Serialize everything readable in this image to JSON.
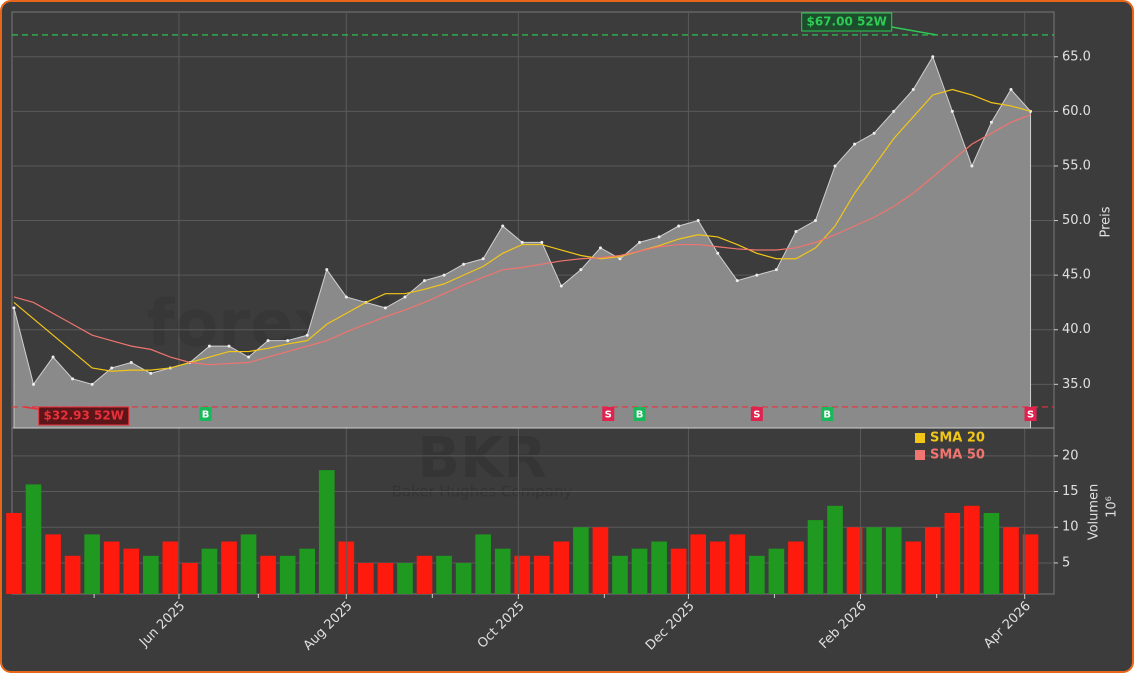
{
  "chart_data": [
    {
      "type": "area",
      "values": [
        42,
        35,
        37.5,
        35.5,
        35,
        36.5,
        37,
        36,
        36.5,
        37,
        38.5,
        38.5,
        37.5,
        39,
        39,
        39.5,
        45.5,
        43,
        42.5,
        42,
        43,
        44.5,
        45,
        46,
        46.5,
        49.5,
        48,
        48,
        44,
        45.5,
        47.5,
        46.5,
        48,
        48.5,
        49.5,
        50,
        47,
        44.5,
        45,
        45.5,
        49,
        50,
        55,
        57,
        58,
        60,
        62,
        65,
        60,
        55,
        59,
        62,
        60
      ],
      "color": "#8a8a8a",
      "series": [
        {
          "name": "SMA 20",
          "color": "#f2c618",
          "values": [
            42.5,
            41,
            39.5,
            38,
            36.5,
            36.2,
            36.3,
            36.3,
            36.5,
            37,
            37.5,
            38,
            38,
            38.3,
            38.7,
            39,
            40.5,
            41.5,
            42.5,
            43.3,
            43.3,
            43.7,
            44.2,
            45,
            45.8,
            47,
            47.8,
            47.8,
            47.3,
            46.8,
            46.5,
            46.7,
            47.2,
            47.7,
            48.3,
            48.7,
            48.5,
            47.8,
            47,
            46.5,
            46.5,
            47.5,
            49.5,
            52.5,
            55,
            57.5,
            59.5,
            61.5,
            62,
            61.5,
            60.8,
            60.5,
            60
          ]
        },
        {
          "name": "SMA 50",
          "color": "#f07470",
          "values": [
            43,
            42.5,
            41.5,
            40.5,
            39.5,
            39,
            38.5,
            38.2,
            37.5,
            37,
            36.8,
            36.9,
            37,
            37.5,
            38,
            38.5,
            39,
            39.8,
            40.5,
            41.2,
            41.8,
            42.5,
            43.3,
            44.1,
            44.8,
            45.5,
            45.7,
            46,
            46.3,
            46.5,
            46.6,
            46.8,
            47.2,
            47.6,
            47.8,
            47.8,
            47.6,
            47.4,
            47.3,
            47.3,
            47.5,
            48,
            48.7,
            49.5,
            50.3,
            51.3,
            52.5,
            54,
            55.5,
            57,
            58,
            59,
            59.7
          ]
        }
      ],
      "legend": "upper right",
      "xlim": [
        -0.1,
        53.2
      ],
      "ylim": [
        31,
        69.1
      ],
      "yticks": [
        {
          "value": 35,
          "label": "35.0"
        },
        {
          "value": 40,
          "label": "40.0"
        },
        {
          "value": 45,
          "label": "45.0"
        },
        {
          "value": 50,
          "label": "50.0"
        },
        {
          "value": 55,
          "label": "55.0"
        },
        {
          "value": 60,
          "label": "60.0"
        },
        {
          "value": 65,
          "label": "65.0"
        }
      ],
      "ylabel": "Preis",
      "grid": true,
      "high": {
        "value": 67,
        "label": "$67.00 52W",
        "x": 47.2,
        "color": "#2ecc55"
      },
      "low": {
        "value": 32.93,
        "label": "$32.93 52W",
        "x": 0.5,
        "color": "#e8313a"
      },
      "signals": [
        {
          "x": 9.8,
          "label": "B",
          "color": "#19b85a"
        },
        {
          "x": 30.4,
          "label": "S",
          "color": "#e0224f"
        },
        {
          "x": 32,
          "label": "B",
          "color": "#19b85a"
        },
        {
          "x": 38,
          "label": "S",
          "color": "#e0224f"
        },
        {
          "x": 41.6,
          "label": "B",
          "color": "#19b85a"
        },
        {
          "x": 52,
          "label": "S",
          "color": "#e0224f"
        }
      ],
      "watermark": "forexsignale.trade"
    },
    {
      "type": "bar",
      "values": [
        12,
        16,
        9,
        6,
        9,
        8,
        7,
        6,
        8,
        5,
        7,
        8,
        9,
        6,
        6,
        7,
        18,
        8,
        5,
        5,
        5,
        6,
        6,
        5,
        9,
        7,
        6,
        6,
        8,
        10,
        10,
        6,
        7,
        8,
        7,
        9,
        8,
        9,
        6,
        7,
        8,
        11,
        13,
        10,
        10,
        10,
        8,
        10,
        12,
        13,
        12,
        10,
        9
      ],
      "colors": [
        "#ff1a0e",
        "#1f991f",
        "#ff1a0e",
        "#ff1a0e",
        "#1f991f",
        "#ff1a0e",
        "#ff1a0e",
        "#1f991f",
        "#ff1a0e",
        "#ff1a0e",
        "#1f991f",
        "#ff1a0e",
        "#1f991f",
        "#ff1a0e",
        "#1f991f",
        "#1f991f",
        "#1f991f",
        "#ff1a0e",
        "#ff1a0e",
        "#ff1a0e",
        "#1f991f",
        "#ff1a0e",
        "#1f991f",
        "#1f991f",
        "#1f991f",
        "#1f991f",
        "#ff1a0e",
        "#ff1a0e",
        "#ff1a0e",
        "#1f991f",
        "#ff1a0e",
        "#1f991f",
        "#1f991f",
        "#1f991f",
        "#ff1a0e",
        "#ff1a0e",
        "#ff1a0e",
        "#ff1a0e",
        "#1f991f",
        "#1f991f",
        "#ff1a0e",
        "#1f991f",
        "#1f991f",
        "#ff1a0e",
        "#1f991f",
        "#1f991f",
        "#ff1a0e",
        "#ff1a0e",
        "#ff1a0e",
        "#ff1a0e",
        "#1f991f",
        "#ff1a0e",
        "#ff1a0e"
      ],
      "xlim": [
        -0.1,
        53.2
      ],
      "xticks": [
        {
          "value": 8.44,
          "label": "Jun 2025"
        },
        {
          "value": 17,
          "label": "Aug 2025"
        },
        {
          "value": 25.8,
          "label": "Oct 2025"
        },
        {
          "value": 34.5,
          "label": "Dec 2025"
        },
        {
          "value": 43.3,
          "label": "Feb 2026"
        },
        {
          "value": 51.7,
          "label": "Apr 2026"
        }
      ],
      "xminor": [
        4.1,
        12.5,
        21.4,
        30.2,
        38.9,
        47.2
      ],
      "ylim": [
        0.65,
        23.9
      ],
      "yticks": [
        5,
        10,
        15,
        20
      ],
      "ylabel": "Volumen",
      "yscale_label": "10⁶",
      "grid": true,
      "watermark": "BKR",
      "watermark_subtitle": "Baker Hughes Company"
    }
  ]
}
